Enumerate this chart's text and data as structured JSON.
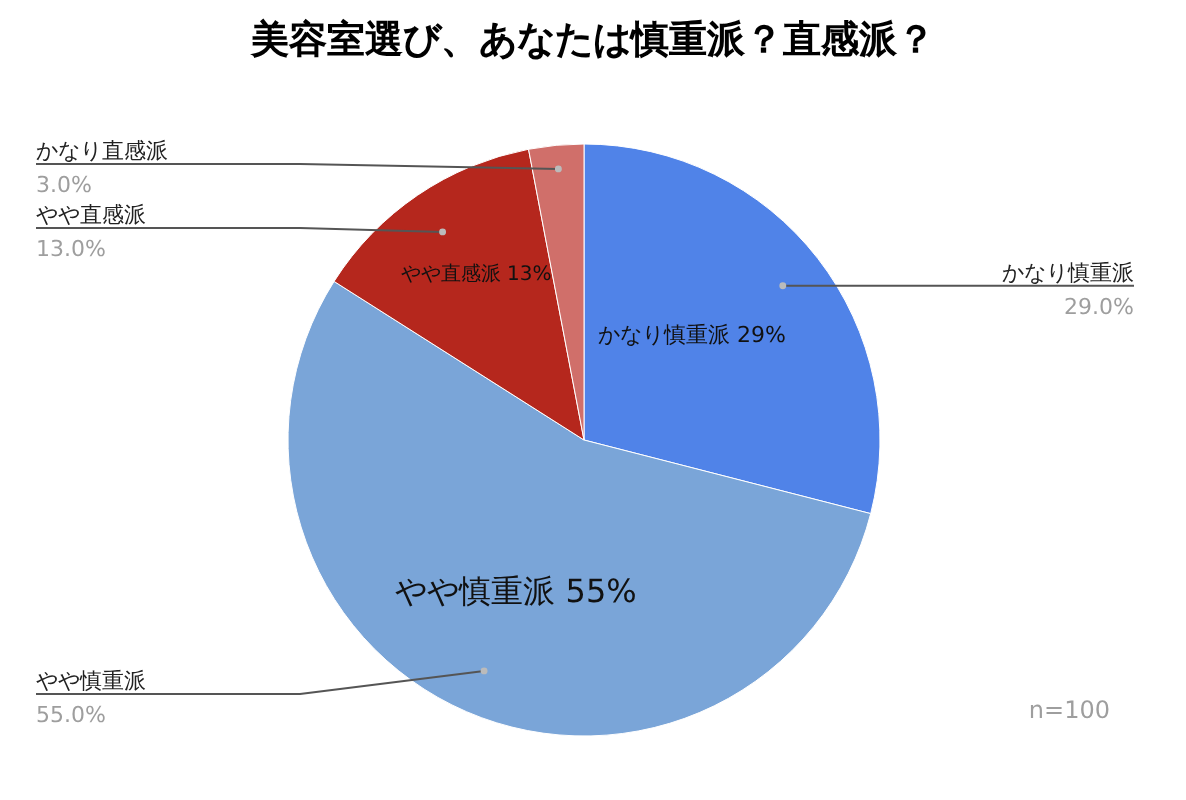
{
  "chart_data": {
    "type": "pie",
    "title": "美容室選び、あなたは慎重派？直感派？",
    "categories": [
      "かなり慎重派",
      "やや慎重派",
      "やや直感派",
      "かなり直感派"
    ],
    "values": [
      29,
      55,
      13,
      3
    ],
    "colors": [
      "#5083e8",
      "#7aa5d8",
      "#b5271d",
      "#d06f6a"
    ],
    "value_labels": [
      "29.0%",
      "55.0%",
      "13.0%",
      "3.0%"
    ],
    "annotations": [
      "かなり慎重派 29%",
      "やや慎重派 55%",
      "やや直感派 13%",
      "n=100"
    ]
  }
}
